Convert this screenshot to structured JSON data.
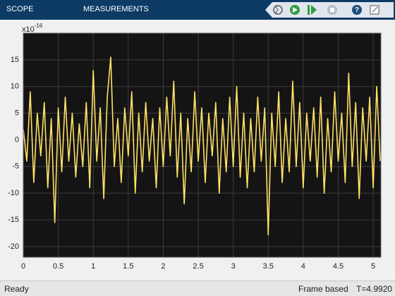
{
  "toolbar": {
    "tabs": [
      "SCOPE",
      "MEASUREMENTS"
    ]
  },
  "status": {
    "state": "Ready",
    "mode": "Frame based",
    "time": "T=4.9920"
  },
  "chart_data": {
    "type": "line",
    "y_exponent_base": "x10",
    "y_exponent": "-16",
    "x": [
      0,
      0.05,
      0.1,
      0.15,
      0.2,
      0.25,
      0.3,
      0.35,
      0.4,
      0.45,
      0.5,
      0.55,
      0.6,
      0.65,
      0.7,
      0.75,
      0.8,
      0.85,
      0.9,
      0.95,
      1,
      1.05,
      1.1,
      1.15,
      1.2,
      1.25,
      1.3,
      1.35,
      1.4,
      1.45,
      1.5,
      1.55,
      1.6,
      1.65,
      1.7,
      1.75,
      1.8,
      1.85,
      1.9,
      1.95,
      2,
      2.05,
      2.1,
      2.15,
      2.2,
      2.25,
      2.3,
      2.35,
      2.4,
      2.45,
      2.5,
      2.55,
      2.6,
      2.65,
      2.7,
      2.75,
      2.8,
      2.85,
      2.9,
      2.95,
      3,
      3.05,
      3.1,
      3.15,
      3.2,
      3.25,
      3.3,
      3.35,
      3.4,
      3.45,
      3.5,
      3.55,
      3.6,
      3.65,
      3.7,
      3.75,
      3.8,
      3.85,
      3.9,
      3.95,
      4,
      4.05,
      4.1,
      4.15,
      4.2,
      4.25,
      4.3,
      4.35,
      4.4,
      4.45,
      4.5,
      4.55,
      4.6,
      4.65,
      4.7,
      4.75,
      4.8,
      4.85,
      4.9,
      4.95,
      5,
      5.05,
      5.1
    ],
    "series": [
      {
        "color": "#ffe066",
        "values": [
          2,
          -4,
          9,
          -8,
          5,
          -3,
          7,
          -9,
          4,
          -15.5,
          6,
          -6,
          8,
          -4,
          5,
          -7,
          3,
          -5,
          7,
          -9,
          13,
          -4,
          6,
          -11,
          8,
          15.5,
          -5,
          4,
          -8,
          6,
          -3,
          9,
          -10,
          5,
          -6,
          7,
          -4,
          4,
          -9,
          6,
          -5,
          8,
          -3,
          11,
          -7,
          5,
          -12,
          4,
          -6,
          9,
          -4,
          6,
          -8,
          5,
          -3,
          7,
          -10,
          4,
          -6,
          8,
          -5,
          10,
          -7,
          5,
          -9,
          4,
          -6,
          8,
          -4,
          6,
          -17.8,
          5,
          -5,
          9,
          -8,
          4,
          -6,
          11,
          -5,
          7,
          -9,
          5,
          -4,
          6,
          -7,
          8,
          -10,
          4,
          -6,
          9,
          -4,
          5,
          -8,
          12.5,
          -5,
          7,
          -11,
          6,
          -4,
          8,
          -9,
          10,
          -4
        ]
      }
    ],
    "xlim": [
      0,
      5.11
    ],
    "ylim": [
      -22,
      20
    ],
    "xticks": [
      0,
      0.5,
      1,
      1.5,
      2,
      2.5,
      3,
      3.5,
      4,
      4.5,
      5
    ],
    "yticks": [
      -20,
      -15,
      -10,
      -5,
      0,
      5,
      10,
      15
    ],
    "grid": true,
    "plot_background": "#141414",
    "grid_color": "#3c3c3c"
  }
}
